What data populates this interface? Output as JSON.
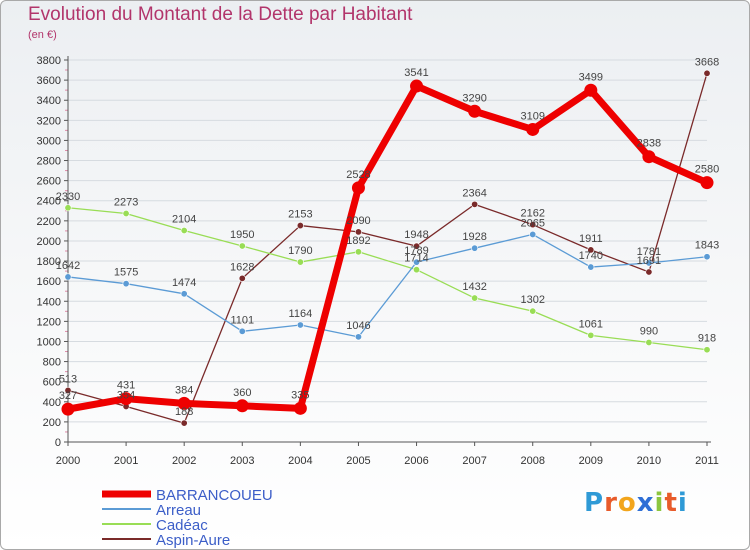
{
  "logo_text": "Proxiti",
  "chart_data": {
    "type": "line",
    "title": "Evolution du Montant de la Dette par Habitant",
    "subtitle": "(en €)",
    "xlabel": "",
    "ylabel": "",
    "ylim": [
      0,
      3800
    ],
    "y_ticks": [
      0,
      200,
      400,
      600,
      800,
      1000,
      1200,
      1400,
      1600,
      1800,
      2000,
      2200,
      2400,
      2600,
      2800,
      3000,
      3200,
      3400,
      3600,
      3800
    ],
    "grid": true,
    "legend_position": "bottom-left",
    "x": [
      "2000",
      "2001",
      "2002",
      "2003",
      "2004",
      "2005",
      "2006",
      "2007",
      "2008",
      "2009",
      "2010",
      "2011"
    ],
    "series": [
      {
        "name": "BARRANCOUEU",
        "color": "#ee0000",
        "values": [
          327,
          431,
          384,
          360,
          335,
          2528,
          3541,
          3290,
          3109,
          3499,
          2838,
          2580
        ]
      },
      {
        "name": "Arreau",
        "color": "#5b9bd5",
        "values": [
          1642,
          1575,
          1474,
          1101,
          1164,
          1046,
          1789,
          1928,
          2065,
          1740,
          1781,
          1843
        ]
      },
      {
        "name": "Cadéac",
        "color": "#99dd55",
        "values": [
          2330,
          2273,
          2104,
          1950,
          1790,
          1892,
          1714,
          1432,
          1302,
          1061,
          990,
          918
        ]
      },
      {
        "name": "Aspin-Aure",
        "color": "#7a2a2a",
        "values": [
          513,
          354,
          188,
          1628,
          2153,
          2090,
          1948,
          2364,
          2162,
          1911,
          1691,
          3668
        ]
      }
    ]
  }
}
